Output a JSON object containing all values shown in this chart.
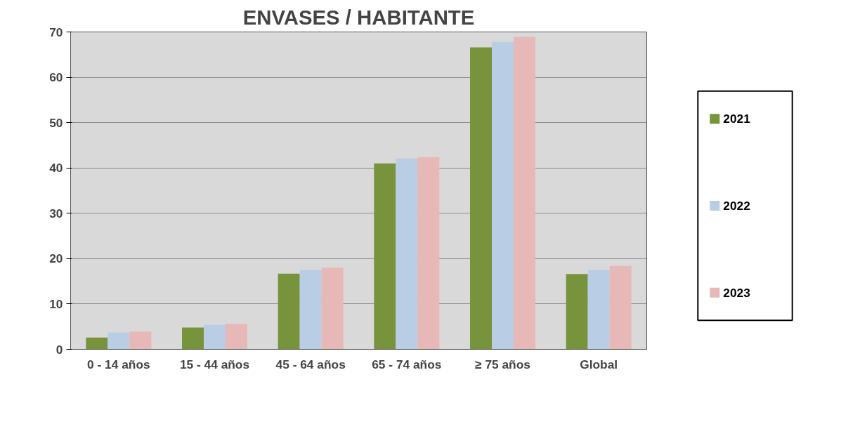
{
  "chart_data": {
    "type": "bar",
    "title": "ENVASES / HABITANTE",
    "categories": [
      "0 - 14 años",
      "15 - 44 años",
      "45 - 64 años",
      "65 - 74 años",
      "≥ 75 años",
      "Global"
    ],
    "series": [
      {
        "name": "2021",
        "color": "#77933c",
        "values": [
          2.6,
          4.8,
          16.7,
          41.0,
          66.6,
          16.6
        ]
      },
      {
        "name": "2022",
        "color": "#b9cde5",
        "values": [
          3.7,
          5.4,
          17.5,
          42.1,
          67.8,
          17.5
        ]
      },
      {
        "name": "2023",
        "color": "#e6b9b8",
        "values": [
          3.9,
          5.6,
          18.0,
          42.4,
          68.9,
          18.4
        ]
      }
    ],
    "ylim": [
      0,
      70
    ],
    "yticks": [
      0,
      10,
      20,
      30,
      40,
      50,
      60,
      70
    ],
    "grid": "y",
    "legend": "right"
  }
}
